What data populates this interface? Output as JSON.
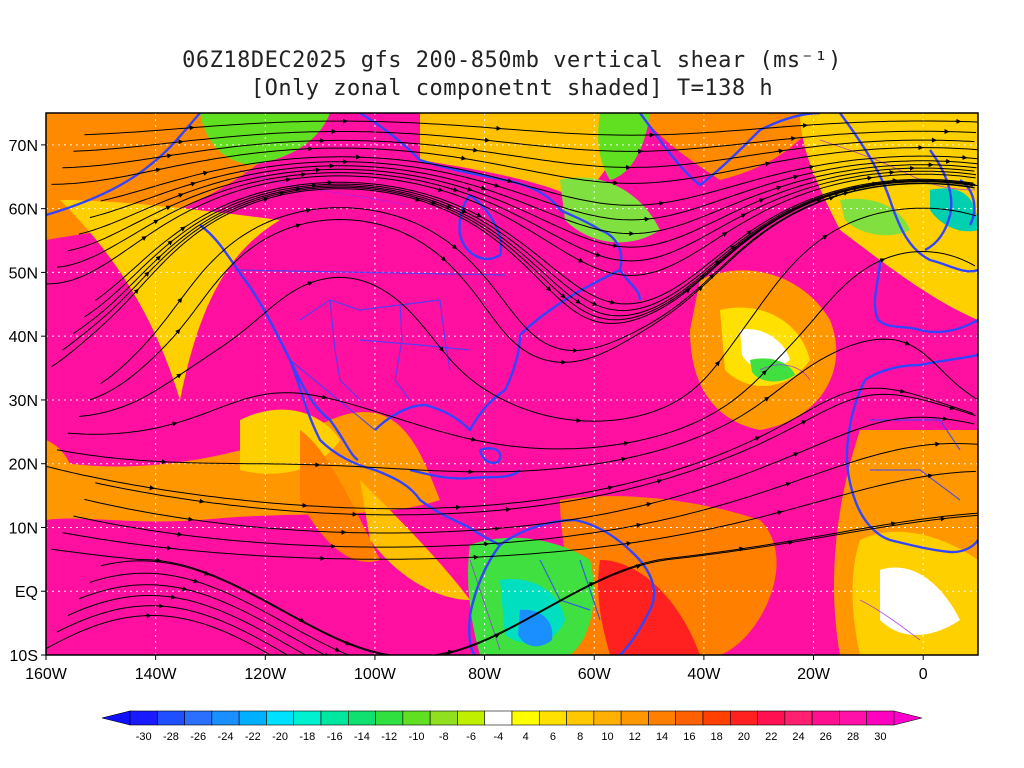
{
  "title": {
    "line1": "06Z18DEC2025 gfs 200-850mb vertical shear (ms⁻¹)",
    "line2": "[Only zonal componetnt shaded] T=138 h"
  },
  "map": {
    "lon_range": [
      -160,
      10
    ],
    "lat_range": [
      -10,
      75
    ],
    "lat_ticks": [
      {
        "value": 70,
        "label": "70N"
      },
      {
        "value": 60,
        "label": "60N"
      },
      {
        "value": 50,
        "label": "50N"
      },
      {
        "value": 40,
        "label": "40N"
      },
      {
        "value": 30,
        "label": "30N"
      },
      {
        "value": 20,
        "label": "20N"
      },
      {
        "value": 10,
        "label": "10N"
      },
      {
        "value": 0,
        "label": "EQ"
      },
      {
        "value": -10,
        "label": "10S"
      }
    ],
    "lon_ticks": [
      {
        "value": -160,
        "label": "160W"
      },
      {
        "value": -140,
        "label": "140W"
      },
      {
        "value": -120,
        "label": "120W"
      },
      {
        "value": -100,
        "label": "100W"
      },
      {
        "value": -80,
        "label": "80W"
      },
      {
        "value": -60,
        "label": "60W"
      },
      {
        "value": -40,
        "label": "40W"
      },
      {
        "value": -20,
        "label": "20W"
      },
      {
        "value": 0,
        "label": "0"
      }
    ],
    "colors": {
      "coastline": "#3344ff",
      "streamline": "#000000",
      "contour": "#a020f0",
      "grid": "#ffffff"
    }
  },
  "colorbar": {
    "labels": [
      "-30",
      "-28",
      "-26",
      "-24",
      "-22",
      "-20",
      "-18",
      "-16",
      "-14",
      "-12",
      "-10",
      "-8",
      "-6",
      "-4",
      "4",
      "6",
      "8",
      "10",
      "12",
      "14",
      "16",
      "18",
      "20",
      "22",
      "24",
      "26",
      "28",
      "30"
    ],
    "colors": [
      "#1a1aff",
      "#1f4fff",
      "#2a6fff",
      "#1a8fff",
      "#00b0ff",
      "#00e0ff",
      "#00f0d0",
      "#00e8a0",
      "#10e070",
      "#30e040",
      "#60e020",
      "#90e020",
      "#c0f000",
      "#ffffff",
      "#ffff00",
      "#ffe000",
      "#ffc800",
      "#ffb000",
      "#ff9800",
      "#ff8000",
      "#ff6000",
      "#ff4000",
      "#ff2020",
      "#ff1050",
      "#ff2070",
      "#ff1090",
      "#ff10a8",
      "#ff00c0"
    ],
    "low_color": "#1010ff",
    "high_color": "#ff00cc"
  }
}
